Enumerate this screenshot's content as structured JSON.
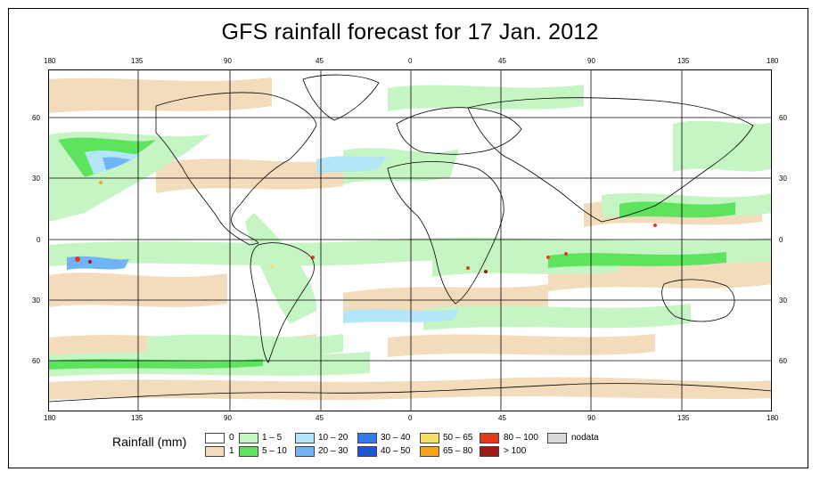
{
  "title": "GFS rainfall forecast for 17 Jan. 2012",
  "longitude_ticks": [
    "180",
    "135",
    "90",
    "45",
    "0",
    "45",
    "90",
    "135",
    "180"
  ],
  "latitude_ticks": [
    "60",
    "30",
    "0",
    "30",
    "60"
  ],
  "legend": {
    "title": "Rainfall (mm)",
    "items": [
      {
        "label": "0",
        "color": "#ffffff"
      },
      {
        "label": "1",
        "color": "#f3dcbc"
      },
      {
        "label": "1 – 5",
        "color": "#c6f5c4"
      },
      {
        "label": "5 – 10",
        "color": "#5ee35e"
      },
      {
        "label": "10 – 20",
        "color": "#b3e6f7"
      },
      {
        "label": "20 – 30",
        "color": "#6fb4f7"
      },
      {
        "label": "30 – 40",
        "color": "#3579e6"
      },
      {
        "label": "40 – 50",
        "color": "#1f55d8"
      },
      {
        "label": "50 – 65",
        "color": "#f7de6a"
      },
      {
        "label": "65 – 80",
        "color": "#f7a21a"
      },
      {
        "label": "80 – 100",
        "color": "#e43a1a"
      },
      {
        "label": "> 100",
        "color": "#a01a1a"
      },
      {
        "label": "nodata",
        "color": "#d9d9d9"
      }
    ]
  }
}
